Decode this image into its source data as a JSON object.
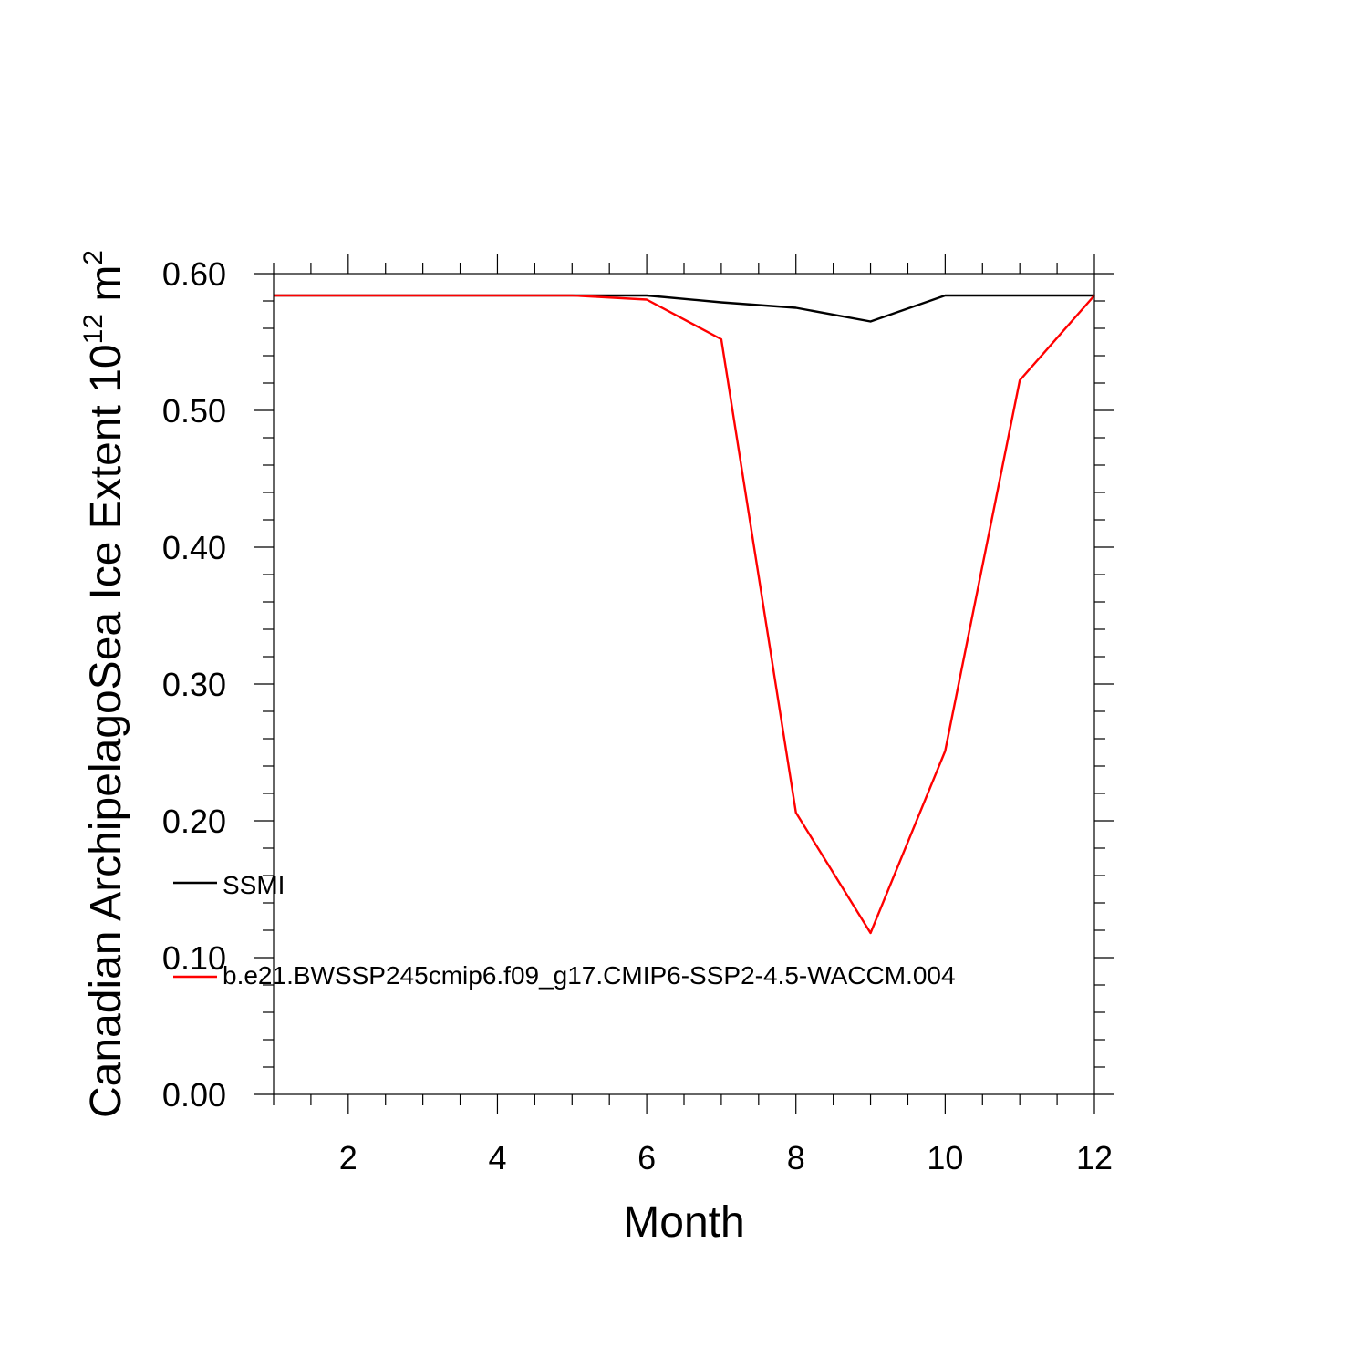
{
  "chart_data": {
    "type": "line",
    "xlabel": "Month",
    "ylabel": {
      "main": "Canadian ArchipelagoSea Ice Extent 10",
      "exponent": "12",
      "unit": " m",
      "unit_exponent": "2"
    },
    "xlim": [
      1,
      12
    ],
    "ylim": [
      0,
      0.6
    ],
    "x_ticks": [
      2,
      4,
      6,
      8,
      10,
      12
    ],
    "x_tick_labels": [
      "2",
      "4",
      "6",
      "8",
      "10",
      "12"
    ],
    "y_ticks": [
      0,
      0.1,
      0.2,
      0.3,
      0.4,
      0.5,
      0.6
    ],
    "y_tick_labels": [
      "0.00",
      "0.10",
      "0.20",
      "0.30",
      "0.40",
      "0.50",
      "0.60"
    ],
    "grid": false,
    "legend_position": "left, inside lower half",
    "x": [
      1,
      2,
      3,
      4,
      5,
      6,
      7,
      8,
      9,
      10,
      11,
      12
    ],
    "series": [
      {
        "name": "SSMI",
        "color": "#000000",
        "values": [
          0.584,
          0.584,
          0.584,
          0.584,
          0.584,
          0.584,
          0.579,
          0.575,
          0.565,
          0.584,
          0.584,
          0.584
        ]
      },
      {
        "name": "b.e21.BWSSP245cmip6.f09_g17.CMIP6-SSP2-4.5-WACCM.004",
        "color": "#ff0000",
        "values": [
          0.584,
          0.584,
          0.584,
          0.584,
          0.584,
          0.581,
          0.552,
          0.206,
          0.118,
          0.251,
          0.522,
          0.584
        ]
      }
    ]
  }
}
